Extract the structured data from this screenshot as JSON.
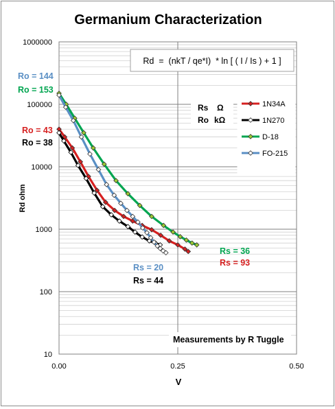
{
  "chart_data": {
    "type": "line",
    "title": "Germanium Characterization",
    "xlabel": "V",
    "ylabel": "Rd ohm",
    "xlim": [
      0,
      0.5
    ],
    "ylim": [
      10,
      1000000
    ],
    "yscale": "log",
    "grid": {
      "x": true,
      "y": true,
      "y_minor": true
    },
    "x_ticks": [
      "0.00",
      "0.25",
      "0.50"
    ],
    "x_tick_values": [
      0,
      0.25,
      0.5
    ],
    "y_ticks": [
      "10",
      "100",
      "1000",
      "10000",
      "100000",
      "1000000"
    ],
    "y_tick_values": [
      10,
      100,
      1000,
      10000,
      100000,
      1000000
    ],
    "legend_position": "right",
    "series": [
      {
        "name": "1N34A",
        "color": "#d62020",
        "marker_fill": "#d62020",
        "x": [
          0.0,
          0.012,
          0.028,
          0.045,
          0.062,
          0.08,
          0.098,
          0.117,
          0.136,
          0.155,
          0.175,
          0.195,
          0.214,
          0.232,
          0.25,
          0.265,
          0.272
        ],
        "y": [
          40000,
          30000,
          20000,
          12000,
          7000,
          4200,
          2700,
          2000,
          1600,
          1350,
          1150,
          980,
          800,
          650,
          560,
          480,
          440
        ]
      },
      {
        "name": "1N270",
        "color": "#000000",
        "marker_fill": "#ffffff",
        "x": [
          0.0,
          0.01,
          0.025,
          0.04,
          0.057,
          0.074,
          0.092,
          0.11,
          0.127,
          0.145,
          0.16,
          0.175,
          0.19,
          0.203,
          0.213
        ],
        "y": [
          35000,
          26000,
          17000,
          10500,
          6500,
          3800,
          2300,
          1700,
          1350,
          1100,
          900,
          750,
          650,
          600,
          560
        ]
      },
      {
        "name": "D-18",
        "color": "#00a550",
        "marker_fill": "#9acd32",
        "x": [
          0.0,
          0.015,
          0.033,
          0.052,
          0.072,
          0.095,
          0.12,
          0.145,
          0.17,
          0.195,
          0.22,
          0.24,
          0.255,
          0.268,
          0.28,
          0.29
        ],
        "y": [
          150000,
          100000,
          60000,
          35000,
          20000,
          11000,
          6000,
          3700,
          2400,
          1600,
          1150,
          900,
          760,
          670,
          600,
          560
        ]
      },
      {
        "name": "FO-215",
        "color": "#5a8fc4",
        "marker_fill": "#ffffff",
        "x": [
          0.0,
          0.014,
          0.03,
          0.047,
          0.065,
          0.083,
          0.1,
          0.116,
          0.13,
          0.143,
          0.155,
          0.166,
          0.176,
          0.185,
          0.193,
          0.2,
          0.207,
          0.213,
          0.219,
          0.225
        ],
        "y": [
          140000,
          90000,
          55000,
          30000,
          16000,
          9000,
          5200,
          3500,
          2600,
          2000,
          1600,
          1300,
          1050,
          880,
          730,
          620,
          540,
          490,
          450,
          420
        ]
      }
    ],
    "formula": "Rd  =  (nkT / qe*I)  * ln [ ( I / Is ) + 1 ]",
    "units_note": {
      "rs": "Rs",
      "rs_unit": "Ω",
      "ro": "Ro",
      "ro_unit": "kΩ"
    },
    "annotations": {
      "ro_fo215": "Ro = 144",
      "ro_d18": "Ro = 153",
      "ro_1n34a": "Ro = 43",
      "ro_1n270": "Ro = 38",
      "rs_d18": "Rs = 36",
      "rs_1n34a": "Rs = 93",
      "rs_fo215": "Rs = 20",
      "rs_1n270": "Rs = 44",
      "credit": "Measurements by R Tuggle"
    },
    "annotation_colors": {
      "fo215": "#5a8fc4",
      "d18": "#00a550",
      "n34a": "#d62020",
      "n270": "#000000"
    }
  }
}
